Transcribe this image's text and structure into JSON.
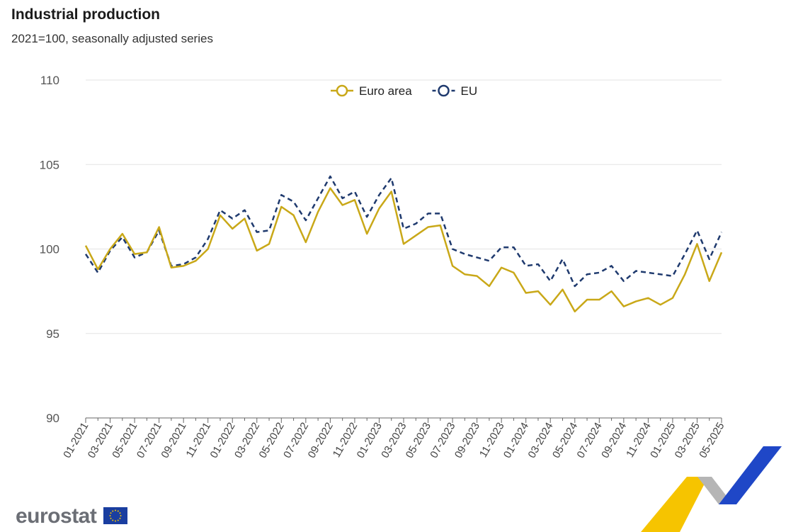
{
  "header": {
    "title": "Industrial production",
    "subtitle": "2021=100, seasonally adjusted series"
  },
  "brand": {
    "logo_text": "eurostat"
  },
  "colors": {
    "euro_area": "#c9a818",
    "eu": "#1f3a6e",
    "grid": "#e3e3e3"
  },
  "chart_data": {
    "type": "line",
    "title": "Industrial production",
    "subtitle": "2021=100, seasonally adjusted series",
    "ylim": [
      90,
      110
    ],
    "yticks": [
      90,
      95,
      100,
      105,
      110
    ],
    "grid": true,
    "legend_position": "top-center",
    "x": [
      "01-2021",
      "02-2021",
      "03-2021",
      "04-2021",
      "05-2021",
      "06-2021",
      "07-2021",
      "08-2021",
      "09-2021",
      "10-2021",
      "11-2021",
      "12-2021",
      "01-2022",
      "02-2022",
      "03-2022",
      "04-2022",
      "05-2022",
      "06-2022",
      "07-2022",
      "08-2022",
      "09-2022",
      "10-2022",
      "11-2022",
      "12-2022",
      "01-2023",
      "02-2023",
      "03-2023",
      "04-2023",
      "05-2023",
      "06-2023",
      "07-2023",
      "08-2023",
      "09-2023",
      "10-2023",
      "11-2023",
      "12-2023",
      "01-2024",
      "02-2024",
      "03-2024",
      "04-2024",
      "05-2024",
      "06-2024",
      "07-2024",
      "08-2024",
      "09-2024",
      "10-2024",
      "11-2024",
      "12-2024",
      "01-2025",
      "02-2025",
      "03-2025",
      "04-2025",
      "05-2025"
    ],
    "xtick_labels": [
      "01-2021",
      "03-2021",
      "05-2021",
      "07-2021",
      "09-2021",
      "11-2021",
      "01-2022",
      "03-2022",
      "05-2022",
      "07-2022",
      "09-2022",
      "11-2022",
      "01-2023",
      "03-2023",
      "05-2023",
      "07-2023",
      "09-2023",
      "11-2023",
      "01-2024",
      "03-2024",
      "05-2024",
      "07-2024",
      "09-2024",
      "11-2024",
      "01-2025",
      "03-2025",
      "05-2025"
    ],
    "series": [
      {
        "name": "Euro area",
        "style": "solid",
        "values": [
          100.2,
          98.8,
          100.0,
          100.9,
          99.7,
          99.8,
          101.3,
          98.9,
          99.0,
          99.3,
          100.0,
          102.0,
          101.2,
          101.8,
          99.9,
          100.3,
          102.5,
          102.0,
          100.4,
          102.2,
          103.6,
          102.6,
          102.9,
          100.9,
          102.4,
          103.4,
          100.3,
          100.8,
          101.3,
          101.4,
          99.0,
          98.5,
          98.4,
          97.8,
          98.9,
          98.6,
          97.4,
          97.5,
          96.7,
          97.6,
          96.3,
          97.0,
          97.0,
          97.5,
          96.6,
          96.9,
          97.1,
          96.7,
          97.1,
          98.5,
          100.3,
          98.1,
          99.8
        ]
      },
      {
        "name": "EU",
        "style": "dashed",
        "values": [
          99.7,
          98.6,
          99.9,
          100.7,
          99.5,
          99.8,
          101.1,
          99.0,
          99.1,
          99.5,
          100.6,
          102.3,
          101.8,
          102.3,
          101.0,
          101.1,
          103.2,
          102.8,
          101.7,
          103.0,
          104.3,
          103.0,
          103.4,
          101.9,
          103.2,
          104.2,
          101.2,
          101.5,
          102.1,
          102.1,
          100.0,
          99.7,
          99.5,
          99.3,
          100.1,
          100.1,
          99.0,
          99.1,
          98.1,
          99.4,
          97.8,
          98.5,
          98.6,
          99.0,
          98.1,
          98.7,
          98.6,
          98.5,
          98.4,
          99.7,
          101.1,
          99.4,
          101.0
        ]
      }
    ]
  }
}
